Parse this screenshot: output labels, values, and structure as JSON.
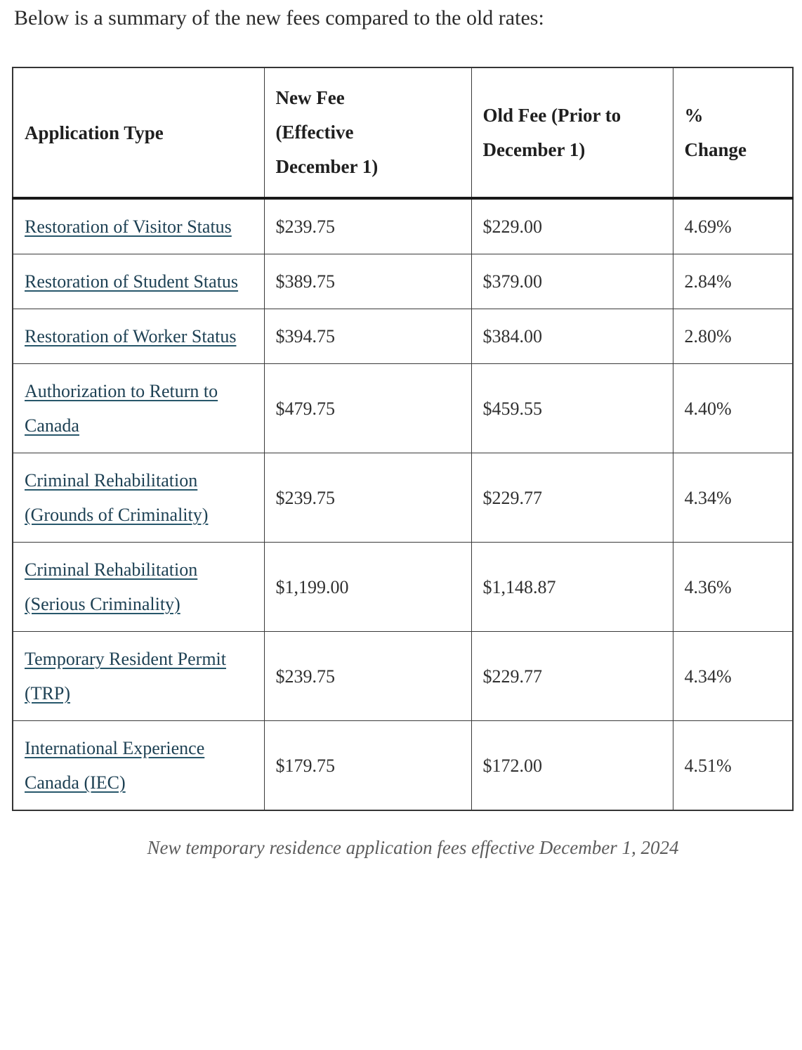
{
  "intro": "Below is a summary of the new fees compared to the old rates:",
  "table": {
    "headers": [
      "Application Type",
      "New Fee (Effective December 1)",
      "Old Fee (Prior to December 1)",
      "% Change"
    ],
    "rows": [
      {
        "application_type": "Restoration of Visitor Status",
        "new_fee": "$239.75",
        "old_fee": "$229.00",
        "pct_change": "4.69%"
      },
      {
        "application_type": "Restoration of Student Status",
        "new_fee": "$389.75",
        "old_fee": "$379.00",
        "pct_change": "2.84%"
      },
      {
        "application_type": "Restoration of Worker Status",
        "new_fee": "$394.75",
        "old_fee": "$384.00",
        "pct_change": "2.80%"
      },
      {
        "application_type": "Authorization to Return to Canada",
        "new_fee": "$479.75",
        "old_fee": "$459.55",
        "pct_change": "4.40%"
      },
      {
        "application_type": "Criminal Rehabilitation (Grounds of Criminality)",
        "new_fee": "$239.75",
        "old_fee": "$229.77",
        "pct_change": "4.34%"
      },
      {
        "application_type": "Criminal Rehabilitation (Serious Criminality)",
        "new_fee": "$1,199.00",
        "old_fee": "$1,148.87",
        "pct_change": "4.36%"
      },
      {
        "application_type": "Temporary Resident Permit (TRP)",
        "new_fee": "$239.75",
        "old_fee": "$229.77",
        "pct_change": "4.34%"
      },
      {
        "application_type": "International Experience Canada (IEC)",
        "new_fee": "$179.75",
        "old_fee": "$172.00",
        "pct_change": "4.51%"
      }
    ]
  },
  "caption": "New temporary residence application fees effective December 1, 2024",
  "colors": {
    "link-color": "#1e4154",
    "link-underline": "#27576b",
    "border": "#3a3a3a",
    "header-rule": "#191919",
    "caption-text": "#5c5c5c"
  }
}
